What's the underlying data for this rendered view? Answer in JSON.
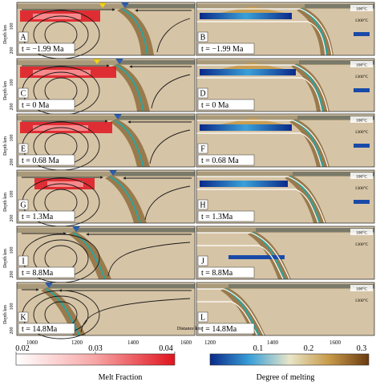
{
  "figure": {
    "panels": [
      {
        "letter": "A",
        "time": "t = −1.99 Ma",
        "kind": "melt"
      },
      {
        "letter": "B",
        "time": "t = −1.99 Ma",
        "kind": "degree"
      },
      {
        "letter": "C",
        "time": "t = 0 Ma",
        "kind": "melt"
      },
      {
        "letter": "D",
        "time": "t = 0 Ma",
        "kind": "degree"
      },
      {
        "letter": "E",
        "time": "t = 0.68 Ma",
        "kind": "melt"
      },
      {
        "letter": "F",
        "time": "t = 0.68 Ma",
        "kind": "degree"
      },
      {
        "letter": "G",
        "time": "t = 1.3Ma",
        "kind": "melt"
      },
      {
        "letter": "H",
        "time": "t = 1.3Ma",
        "kind": "degree"
      },
      {
        "letter": "I",
        "time": "t = 8.8Ma",
        "kind": "melt"
      },
      {
        "letter": "J",
        "time": "t = 8.8Ma",
        "kind": "degree"
      },
      {
        "letter": "K",
        "time": "t = 14.8Ma",
        "kind": "melt"
      },
      {
        "letter": "L",
        "time": "t = 14.8Ma",
        "kind": "degree"
      }
    ],
    "isotherms": [
      "100°C",
      "1300°C"
    ],
    "depth_axis_label": "Depth  km",
    "depth_ticks": [
      "100",
      "200"
    ],
    "distance_axis_label": "Distance  km",
    "distance_ticks_left": [
      "1000",
      "1200",
      "1400",
      "1600"
    ],
    "distance_ticks_right": [
      "1200",
      "1400",
      "1600"
    ],
    "melt_colorbar": {
      "label": "Melt Fraction",
      "ticks": [
        "0.02",
        "0.03",
        "0.04"
      ]
    },
    "degree_colorbar": {
      "label": "Degree of melting",
      "ticks": [
        "0.1",
        "0.2",
        "0.3"
      ]
    },
    "colors": {
      "mantle": "#d6c4a6",
      "slab": "#9a7a4c",
      "melt": "#e0141e",
      "crust": "#7a7a6a",
      "streamline": "#1a1a1a",
      "trench_marker": "#2a5db0",
      "ridge_marker": "#f2d21a"
    }
  }
}
